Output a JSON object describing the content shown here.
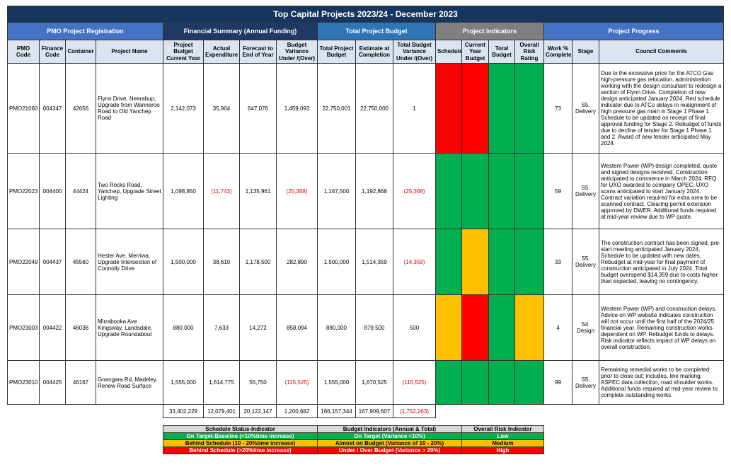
{
  "title": "Top Capital Projects 2023/24 - December 2023",
  "groups": [
    {
      "label": "PMO Project Registration",
      "span": 4,
      "color": "#4472c4"
    },
    {
      "label": "Financial Summary (Annual Funding)",
      "span": 4,
      "color": "#1f3864"
    },
    {
      "label": "Total Project Budget",
      "span": 3,
      "color": "#2e75b6"
    },
    {
      "label": "Project Indicators",
      "span": 4,
      "color": "#7f7f7f"
    },
    {
      "label": "Project Progress",
      "span": 3,
      "color": "#4472c4"
    }
  ],
  "columns": [
    "PMO Code",
    "Finance Code",
    "Container",
    "Project Name",
    "Project Budget Current Year",
    "Actual Expenditure",
    "Forecast to End of Year",
    "Budget Variance Under /(Over)",
    "Total Project Budget",
    "Estimate at Completion",
    "Total Budget Variance Under /(Over)",
    "Schedule",
    "Current Year Budget",
    "Total Budget",
    "Overall Risk Rating",
    "Work % Complete",
    "Stage",
    "Council Comments"
  ],
  "rows": [
    {
      "cells": [
        "PMO21060",
        "004347",
        "42656",
        "Flynn Drive, Neerabup, Upgrade from Wanneroo Road to Old Yanchep Road",
        "2,142,073",
        "35,904",
        "647,076",
        "1,459,093",
        "22,750,001",
        "22,750,000",
        "1"
      ],
      "indicators": [
        "#ff0000",
        "#ff0000",
        "#00b050",
        "#00b050"
      ],
      "progress": [
        "73",
        "S5. Delivery",
        "Due to the excessive price for the ATCO Gas high-pressure gas relocation, administration working with the design consultant to redesign a section of Flynn Drive. Completion of new design anticipated January 2024. Red schedule indicator due to ATCo delays in realignment of high pressure gas main in Stage 1 Phase 1. Schedule to be updated on receipt of final approval funding for Stage 2. Rebudget of funds due to decline of tender for Stage 1 Phase 1 and 2. Award of new tender anticipated May 2024."
      ]
    },
    {
      "cells": [
        "PMO22023",
        "004400",
        "44424",
        "Two Rocks Road, Yanchep, Upgrade Street Lighting",
        "1,098,850",
        "(11,743)",
        "1,135,961",
        "(25,368)",
        "1,167,500",
        "1,192,868",
        "(25,368)"
      ],
      "indicators": [
        "#00b050",
        "#00b050",
        "#00b050",
        "#00b050"
      ],
      "progress": [
        "59",
        "S5. Delivery",
        "Western Power (WP) design completed, quote and signed designs received. Construction anticipated to commence in March 2024.  RFQ for UXO awarded to company OPEC. UXO scans anticipated to start January 2024. Contract variation required for extra area to be scanned contract. Clearing permit extension approved by DWER. Additional funds required at mid-year review due to WP quote."
      ]
    },
    {
      "cells": [
        "PMO22049",
        "004437",
        "45560",
        "Hester Ave, Merriwa, Upgrade Intersection of Connolly Drive",
        "1,500,000",
        "38,610",
        "1,178,500",
        "282,890",
        "1,500,000",
        "1,514,359",
        "(14,359)"
      ],
      "indicators": [
        "#00b050",
        "#ffc000",
        "#00b050",
        "#00b050"
      ],
      "progress": [
        "33",
        "S5. Delivery",
        "The construction contract has been signed, pre-start meeting anticipated January 2024, Schedule to be updated with new dates. Rebudget at mid-year for final payment of construction anticipated in July 2024. Total budget overspend $14,359 due to costs higher than expected, leaving no contingency."
      ]
    },
    {
      "cells": [
        "PMO23003",
        "004422",
        "46036",
        "Mirrabooka Ave Kingsway, Landsdale, Upgrade Roundabout",
        "880,000",
        "7,633",
        "14,272",
        "858,094",
        "880,000",
        "879,500",
        "500"
      ],
      "indicators": [
        "#ffc000",
        "#ff0000",
        "#00b050",
        "#ffc000"
      ],
      "progress": [
        "4",
        "S4. Design",
        "Western Power (WP) and construction delays. Advice on WP website indicates construction will not occur until the first half of the 2024/25 financial year. Remaining construction works dependent on WP. Rebudget funds to delays. Risk indicator reflects impact of WP delays on overall construction."
      ]
    },
    {
      "cells": [
        "PMO23010",
        "004425",
        "46167",
        "Gnangara Rd, Madeley, Renew Road Surface",
        "1,555,000",
        "1,614,775",
        "55,750",
        "(115,525)",
        "1,555,000",
        "1,670,525",
        "(115,525)"
      ],
      "indicators": [
        "#00b050",
        "#00b050",
        "#00b050",
        "#00b050"
      ],
      "progress": [
        "99",
        "S5. Delivery",
        "Remaining remedial works to be completed prior to close out; includes, line marking, ASPEC data collection, road shoulder works. Additional funds required at mid-year review to complete outstanding works."
      ]
    }
  ],
  "totals": [
    "33,402,229",
    "12,079,401",
    "20,122,147",
    "1,200,682",
    "166,157,344",
    "167,909,607",
    "(1,752,263)"
  ],
  "legend": {
    "headers": [
      "Schedule Status-Indicator",
      "Budget Indicators (Annual & Total)",
      "Overall Risk Indicator"
    ],
    "rows": [
      {
        "color": "#00b050",
        "cells": [
          "On Target-Baseline (<10%time increase)",
          "On Target (Variance <10%)",
          "Low"
        ]
      },
      {
        "color": "#ffc000",
        "cells": [
          "Behind Schedule (10 - 20%time increase)",
          "Almost on Budget (Variance of 10 - 20%)",
          "Medium"
        ]
      },
      {
        "color": "#ff0000",
        "cells": [
          "Behind Schedule (>20%time increase)",
          "Under / Over Budget (Variance > 20%)",
          "High"
        ]
      }
    ]
  }
}
